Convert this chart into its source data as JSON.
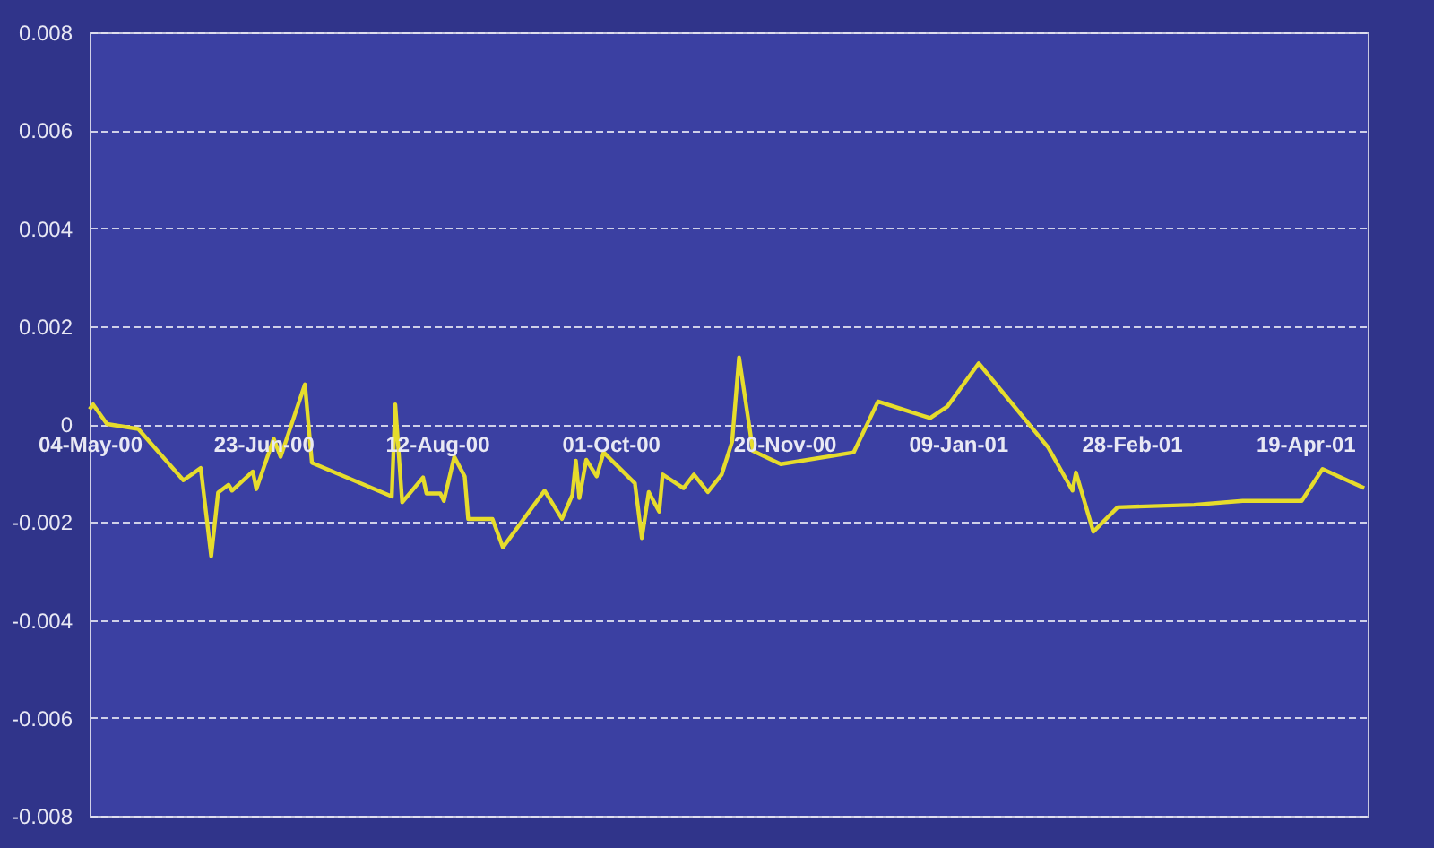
{
  "chart_data": {
    "type": "line",
    "x": [
      "2000-05-04",
      "2000-05-05",
      "2000-05-09",
      "2000-05-18",
      "2000-05-31",
      "2000-06-05",
      "2000-06-08",
      "2000-06-10",
      "2000-06-13",
      "2000-06-14",
      "2000-06-20",
      "2000-06-21",
      "2000-06-26",
      "2000-06-28",
      "2000-07-05",
      "2000-07-07",
      "2000-07-30",
      "2000-07-31",
      "2000-08-02",
      "2000-08-08",
      "2000-08-09",
      "2000-08-13",
      "2000-08-14",
      "2000-08-17",
      "2000-08-20",
      "2000-08-21",
      "2000-08-28",
      "2000-08-31",
      "2000-09-12",
      "2000-09-17",
      "2000-09-20",
      "2000-09-21",
      "2000-09-22",
      "2000-09-24",
      "2000-09-27",
      "2000-09-29",
      "2000-10-08",
      "2000-10-10",
      "2000-10-12",
      "2000-10-15",
      "2000-10-16",
      "2000-10-22",
      "2000-10-25",
      "2000-10-29",
      "2000-11-02",
      "2000-11-05",
      "2000-11-07",
      "2000-11-11",
      "2000-11-19",
      "2000-12-10",
      "2000-12-17",
      "2001-01-01",
      "2001-01-06",
      "2001-01-15",
      "2001-02-04",
      "2001-02-11",
      "2001-02-12",
      "2001-02-17",
      "2001-02-24",
      "2001-03-18",
      "2001-04-01",
      "2001-04-18",
      "2001-04-24",
      "2001-05-06"
    ],
    "series": [
      {
        "color": "#e6dc2c",
        "values": [
          0.0003,
          0.0004,
          0.0,
          -0.0001,
          -0.00115,
          -0.0009,
          -0.0027,
          -0.0014,
          -0.00124,
          -0.00136,
          -0.00097,
          -0.00133,
          -0.0003,
          -0.00067,
          0.00081,
          -0.00079,
          -0.00148,
          0.0004,
          -0.0016,
          -0.00109,
          -0.00142,
          -0.00142,
          -0.00157,
          -0.00067,
          -0.00107,
          -0.00194,
          -0.00194,
          -0.00252,
          -0.00136,
          -0.00194,
          -0.00145,
          -0.00075,
          -0.00151,
          -0.00073,
          -0.00107,
          -0.00058,
          -0.00121,
          -0.00233,
          -0.00139,
          -0.00179,
          -0.00103,
          -0.00131,
          -0.00103,
          -0.00139,
          -0.00103,
          -0.00036,
          0.00136,
          -0.00055,
          -0.00082,
          -0.00058,
          0.00046,
          0.00012,
          0.00036,
          0.00124,
          -0.00048,
          -0.00136,
          -0.00099,
          -0.0022,
          -0.0017,
          -0.00165,
          -0.00157,
          -0.00157,
          -0.00092,
          -0.00131
        ]
      }
    ],
    "xlim": [
      "2000-05-04",
      "2001-05-07"
    ],
    "xticks": [
      {
        "value": "2000-05-04",
        "label": "04-May-00"
      },
      {
        "value": "2000-06-23",
        "label": "23-Jun-00"
      },
      {
        "value": "2000-08-12",
        "label": "12-Aug-00"
      },
      {
        "value": "2000-10-01",
        "label": "01-Oct-00"
      },
      {
        "value": "2000-11-20",
        "label": "20-Nov-00"
      },
      {
        "value": "2001-01-09",
        "label": "09-Jan-01"
      },
      {
        "value": "2001-02-28",
        "label": "28-Feb-01"
      },
      {
        "value": "2001-04-19",
        "label": "19-Apr-01"
      }
    ],
    "ylim": [
      -0.008,
      0.008
    ],
    "yticks": [
      -0.008,
      -0.006,
      -0.004,
      -0.002,
      0,
      0.002,
      0.004,
      0.006,
      0.008
    ],
    "grid": "y",
    "marker": "none",
    "line_style": "solid"
  }
}
